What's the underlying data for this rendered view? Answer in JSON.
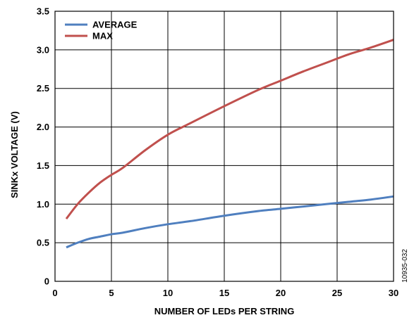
{
  "chart_data": {
    "type": "line",
    "xlabel": "NUMBER OF LEDs PER STRING",
    "ylabel": "SINKx VOLTAGE (V)",
    "xlim": [
      0,
      30
    ],
    "ylim": [
      0,
      3.5
    ],
    "xticks": [
      0,
      5,
      10,
      15,
      20,
      25,
      30
    ],
    "yticks": [
      0,
      0.5,
      1.0,
      1.5,
      2.0,
      2.5,
      3.0,
      3.5
    ],
    "xtick_labels": [
      "0",
      "5",
      "10",
      "15",
      "20",
      "25",
      "30"
    ],
    "ytick_labels": [
      "0",
      "0.5",
      "1.0",
      "1.5",
      "2.0",
      "2.5",
      "3.0",
      "3.5"
    ],
    "grid": true,
    "legend_position": "top-left",
    "series": [
      {
        "name": "AVERAGE",
        "color": "#4f7fbf",
        "x": [
          1,
          2,
          3,
          4,
          5,
          6,
          8,
          10,
          12,
          15,
          18,
          20,
          22,
          24,
          26,
          28,
          30
        ],
        "y": [
          0.44,
          0.5,
          0.55,
          0.58,
          0.61,
          0.63,
          0.69,
          0.74,
          0.78,
          0.85,
          0.91,
          0.94,
          0.97,
          1.0,
          1.03,
          1.06,
          1.1
        ]
      },
      {
        "name": "MAX",
        "color": "#c0504d",
        "x": [
          1,
          2,
          3,
          4,
          5,
          6,
          8,
          10,
          12,
          15,
          18,
          20,
          22,
          24,
          26,
          28,
          30
        ],
        "y": [
          0.81,
          1.0,
          1.15,
          1.28,
          1.38,
          1.47,
          1.7,
          1.9,
          2.05,
          2.27,
          2.48,
          2.6,
          2.72,
          2.83,
          2.94,
          3.03,
          3.13
        ]
      }
    ]
  },
  "figure_id": "10935-032"
}
